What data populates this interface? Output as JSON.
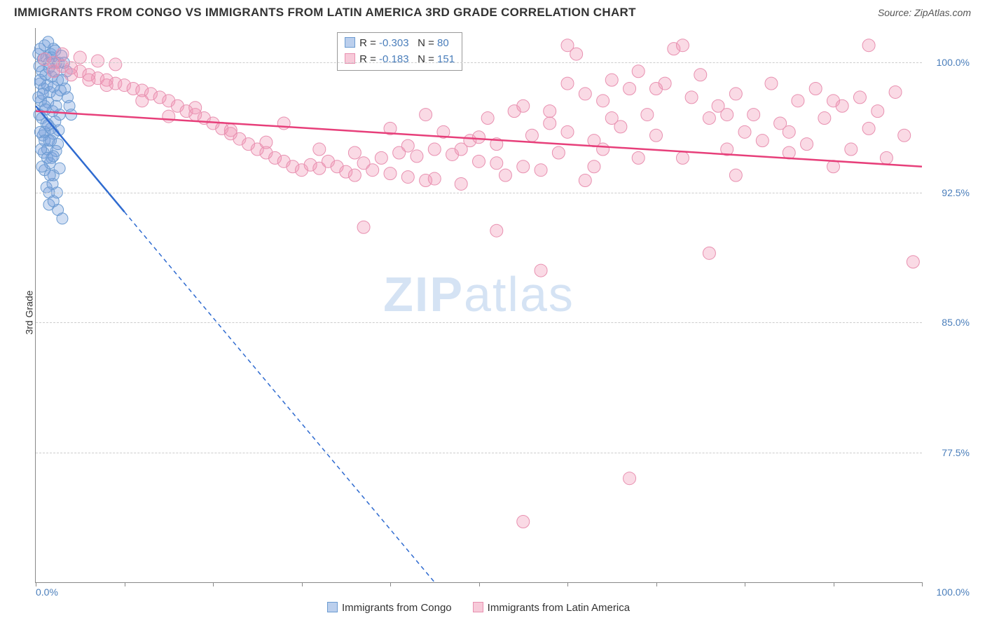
{
  "title": "IMMIGRANTS FROM CONGO VS IMMIGRANTS FROM LATIN AMERICA 3RD GRADE CORRELATION CHART",
  "source": "Source: ZipAtlas.com",
  "ylabel": "3rd Grade",
  "watermark_a": "ZIP",
  "watermark_b": "atlas",
  "axes": {
    "x_min_label": "0.0%",
    "x_max_label": "100.0%",
    "xlim": [
      0,
      100
    ],
    "ylim": [
      70,
      102
    ],
    "y_ticks": [
      77.5,
      85.0,
      92.5,
      100.0
    ],
    "y_tick_labels": [
      "77.5%",
      "85.0%",
      "92.5%",
      "100.0%"
    ],
    "x_ticks": [
      0,
      10,
      20,
      30,
      40,
      50,
      60,
      70,
      80,
      90,
      100
    ],
    "grid_color": "#cccccc",
    "axis_color": "#888888",
    "tick_label_color": "#4a7ebb"
  },
  "series": [
    {
      "name": "Immigrants from Congo",
      "marker_fill": "rgba(120,160,220,0.35)",
      "marker_stroke": "#6b9bd1",
      "line_color": "#2f6bd0",
      "line_dash": "6,5",
      "solid_until_x": 10,
      "marker_r": 8,
      "trend": {
        "x1": 0,
        "y1": 97.5,
        "x2": 45,
        "y2": 70
      },
      "points": [
        [
          0.3,
          100.5
        ],
        [
          0.5,
          100.8
        ],
        [
          0.8,
          100.2
        ],
        [
          1.0,
          101.0
        ],
        [
          1.2,
          100.3
        ],
        [
          1.4,
          101.2
        ],
        [
          1.7,
          100.5
        ],
        [
          2.0,
          100.8
        ],
        [
          2.3,
          100.0
        ],
        [
          0.4,
          99.8
        ],
        [
          0.7,
          99.5
        ],
        [
          1.1,
          99.3
        ],
        [
          1.5,
          99.7
        ],
        [
          1.8,
          99.2
        ],
        [
          2.1,
          99.5
        ],
        [
          2.5,
          99.0
        ],
        [
          0.5,
          98.8
        ],
        [
          0.9,
          98.5
        ],
        [
          1.3,
          98.7
        ],
        [
          1.6,
          98.3
        ],
        [
          2.0,
          98.6
        ],
        [
          2.4,
          98.1
        ],
        [
          2.8,
          98.4
        ],
        [
          0.6,
          97.8
        ],
        [
          1.0,
          97.5
        ],
        [
          1.4,
          97.7
        ],
        [
          1.9,
          97.2
        ],
        [
          2.3,
          97.5
        ],
        [
          2.7,
          97.0
        ],
        [
          0.7,
          96.8
        ],
        [
          1.2,
          96.5
        ],
        [
          1.7,
          96.2
        ],
        [
          2.2,
          96.6
        ],
        [
          2.6,
          96.1
        ],
        [
          0.8,
          95.8
        ],
        [
          1.5,
          95.5
        ],
        [
          2.0,
          95.9
        ],
        [
          2.5,
          95.3
        ],
        [
          0.9,
          94.8
        ],
        [
          1.8,
          94.5
        ],
        [
          2.3,
          94.9
        ],
        [
          1.0,
          93.8
        ],
        [
          2.0,
          93.5
        ],
        [
          2.7,
          93.9
        ],
        [
          1.2,
          92.8
        ],
        [
          2.4,
          92.5
        ],
        [
          1.5,
          91.8
        ],
        [
          1.0,
          96.0
        ],
        [
          1.3,
          95.0
        ],
        [
          1.6,
          94.2
        ],
        [
          1.9,
          93.0
        ],
        [
          0.3,
          98.0
        ],
        [
          0.4,
          97.0
        ],
        [
          0.5,
          96.0
        ],
        [
          0.6,
          95.0
        ],
        [
          0.7,
          94.0
        ],
        [
          1.5,
          100.0
        ],
        [
          1.8,
          100.3
        ],
        [
          2.2,
          100.7
        ],
        [
          2.6,
          100.0
        ],
        [
          2.9,
          100.4
        ],
        [
          3.2,
          100.0
        ],
        [
          3.5,
          99.5
        ],
        [
          1.0,
          95.5
        ],
        [
          1.3,
          94.5
        ],
        [
          1.6,
          93.5
        ],
        [
          3.0,
          99.0
        ],
        [
          3.3,
          98.5
        ],
        [
          3.6,
          98.0
        ],
        [
          3.8,
          97.5
        ],
        [
          4.0,
          97.0
        ],
        [
          1.5,
          92.5
        ],
        [
          2.0,
          92.0
        ],
        [
          2.5,
          91.5
        ],
        [
          3.0,
          91.0
        ],
        [
          0.5,
          99.0
        ],
        [
          0.8,
          98.2
        ],
        [
          1.1,
          97.3
        ],
        [
          1.4,
          96.4
        ],
        [
          1.7,
          95.5
        ],
        [
          2.0,
          94.6
        ]
      ]
    },
    {
      "name": "Immigrants from Latin America",
      "marker_fill": "rgba(240,150,180,0.35)",
      "marker_stroke": "#e890b0",
      "line_color": "#e73f7a",
      "line_dash": "",
      "solid_until_x": 100,
      "marker_r": 9,
      "trend": {
        "x1": 0,
        "y1": 97.2,
        "x2": 100,
        "y2": 94.0
      },
      "points": [
        [
          1,
          100.2
        ],
        [
          2,
          100.0
        ],
        [
          3,
          99.8
        ],
        [
          4,
          99.7
        ],
        [
          5,
          99.5
        ],
        [
          6,
          99.3
        ],
        [
          7,
          99.1
        ],
        [
          8,
          99.0
        ],
        [
          9,
          98.8
        ],
        [
          10,
          98.7
        ],
        [
          11,
          98.5
        ],
        [
          12,
          98.4
        ],
        [
          13,
          98.2
        ],
        [
          14,
          98.0
        ],
        [
          15,
          97.8
        ],
        [
          16,
          97.5
        ],
        [
          17,
          97.2
        ],
        [
          18,
          97.0
        ],
        [
          19,
          96.8
        ],
        [
          20,
          96.5
        ],
        [
          21,
          96.2
        ],
        [
          22,
          95.9
        ],
        [
          23,
          95.6
        ],
        [
          24,
          95.3
        ],
        [
          25,
          95.0
        ],
        [
          26,
          94.8
        ],
        [
          27,
          94.5
        ],
        [
          28,
          94.3
        ],
        [
          29,
          94.0
        ],
        [
          30,
          93.8
        ],
        [
          12,
          97.8
        ],
        [
          15,
          96.9
        ],
        [
          18,
          97.4
        ],
        [
          22,
          96.1
        ],
        [
          26,
          95.4
        ],
        [
          31,
          94.1
        ],
        [
          32,
          93.9
        ],
        [
          33,
          94.3
        ],
        [
          34,
          94.0
        ],
        [
          35,
          93.7
        ],
        [
          36,
          93.5
        ],
        [
          37,
          94.2
        ],
        [
          38,
          93.8
        ],
        [
          39,
          94.5
        ],
        [
          40,
          93.6
        ],
        [
          41,
          94.8
        ],
        [
          42,
          93.4
        ],
        [
          43,
          94.6
        ],
        [
          44,
          93.2
        ],
        [
          45,
          95.0
        ],
        [
          46,
          96.0
        ],
        [
          47,
          94.7
        ],
        [
          48,
          93.0
        ],
        [
          49,
          95.5
        ],
        [
          50,
          94.3
        ],
        [
          37,
          90.5
        ],
        [
          42,
          95.2
        ],
        [
          44,
          97.0
        ],
        [
          51,
          96.8
        ],
        [
          52,
          95.3
        ],
        [
          53,
          93.5
        ],
        [
          54,
          97.2
        ],
        [
          55,
          94.0
        ],
        [
          56,
          95.8
        ],
        [
          57,
          93.8
        ],
        [
          58,
          96.5
        ],
        [
          59,
          94.8
        ],
        [
          60,
          101.0
        ],
        [
          52,
          90.3
        ],
        [
          55,
          73.5
        ],
        [
          57,
          88.0
        ],
        [
          61,
          100.5
        ],
        [
          62,
          98.2
        ],
        [
          63,
          95.5
        ],
        [
          64,
          97.8
        ],
        [
          65,
          99.0
        ],
        [
          66,
          96.3
        ],
        [
          67,
          98.5
        ],
        [
          68,
          94.5
        ],
        [
          69,
          97.0
        ],
        [
          70,
          95.8
        ],
        [
          62,
          93.2
        ],
        [
          65,
          96.8
        ],
        [
          68,
          99.5
        ],
        [
          60,
          96.0
        ],
        [
          63,
          94.0
        ],
        [
          67,
          76.0
        ],
        [
          71,
          98.8
        ],
        [
          72,
          100.8
        ],
        [
          73,
          101.0
        ],
        [
          74,
          98.0
        ],
        [
          75,
          99.3
        ],
        [
          76,
          96.8
        ],
        [
          77,
          97.5
        ],
        [
          78,
          95.0
        ],
        [
          79,
          98.2
        ],
        [
          80,
          96.0
        ],
        [
          73,
          94.5
        ],
        [
          76,
          89.0
        ],
        [
          79,
          93.5
        ],
        [
          81,
          97.0
        ],
        [
          82,
          95.5
        ],
        [
          83,
          98.8
        ],
        [
          84,
          96.5
        ],
        [
          85,
          94.8
        ],
        [
          86,
          97.8
        ],
        [
          87,
          95.3
        ],
        [
          88,
          98.5
        ],
        [
          89,
          96.8
        ],
        [
          90,
          94.0
        ],
        [
          91,
          97.5
        ],
        [
          92,
          95.0
        ],
        [
          93,
          98.0
        ],
        [
          94,
          96.2
        ],
        [
          95,
          97.2
        ],
        [
          96,
          94.5
        ],
        [
          97,
          98.3
        ],
        [
          98,
          95.8
        ],
        [
          99,
          88.5
        ],
        [
          94,
          101.0
        ],
        [
          3,
          100.5
        ],
        [
          5,
          100.3
        ],
        [
          7,
          100.1
        ],
        [
          9,
          99.9
        ],
        [
          2,
          99.5
        ],
        [
          4,
          99.3
        ],
        [
          6,
          99.0
        ],
        [
          8,
          98.7
        ],
        [
          28,
          96.5
        ],
        [
          32,
          95.0
        ],
        [
          36,
          94.8
        ],
        [
          40,
          96.2
        ],
        [
          45,
          93.3
        ],
        [
          50,
          95.7
        ],
        [
          55,
          97.5
        ],
        [
          60,
          98.8
        ],
        [
          48,
          95.0
        ],
        [
          52,
          94.2
        ],
        [
          58,
          97.2
        ],
        [
          64,
          95.0
        ],
        [
          70,
          98.5
        ],
        [
          78,
          97.0
        ],
        [
          85,
          96.0
        ],
        [
          90,
          97.8
        ]
      ]
    }
  ],
  "stats": [
    {
      "swatch_fill": "rgba(120,160,220,0.5)",
      "swatch_border": "#6b9bd1",
      "r_label": "R =",
      "r_val": "-0.303",
      "n_label": "N =",
      "n_val": "80"
    },
    {
      "swatch_fill": "rgba(240,150,180,0.5)",
      "swatch_border": "#e890b0",
      "r_label": "R =",
      "r_val": "-0.183",
      "n_label": "N =",
      "n_val": "151"
    }
  ],
  "legend": [
    {
      "fill": "rgba(120,160,220,0.5)",
      "border": "#6b9bd1",
      "label": "Immigrants from Congo"
    },
    {
      "fill": "rgba(240,150,180,0.5)",
      "border": "#e890b0",
      "label": "Immigrants from Latin America"
    }
  ]
}
